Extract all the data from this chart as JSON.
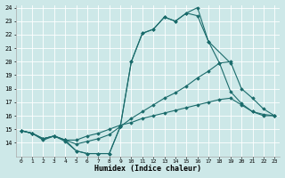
{
  "xlabel": "Humidex (Indice chaleur)",
  "bg_color": "#cde8e8",
  "line_color": "#1a6b6b",
  "xlim": [
    -0.5,
    23.5
  ],
  "ylim": [
    13,
    24.2
  ],
  "yticks": [
    14,
    15,
    16,
    17,
    18,
    19,
    20,
    21,
    22,
    23,
    24
  ],
  "xticks": [
    0,
    1,
    2,
    3,
    4,
    5,
    6,
    7,
    8,
    9,
    10,
    11,
    12,
    13,
    14,
    15,
    16,
    17,
    18,
    19,
    20,
    21,
    22,
    23
  ],
  "lines": [
    {
      "x": [
        0,
        1,
        2,
        3,
        4,
        5,
        6,
        7,
        8,
        9,
        10,
        11,
        12,
        13,
        14,
        15,
        16,
        17,
        19
      ],
      "y": [
        14.9,
        14.7,
        14.2,
        14.5,
        14.1,
        13.4,
        13.2,
        13.2,
        13.2,
        15.2,
        20.0,
        22.1,
        22.4,
        23.3,
        23.0,
        23.6,
        24.0,
        21.5,
        19.9
      ]
    },
    {
      "x": [
        0,
        1,
        2,
        3,
        4,
        5,
        6,
        7,
        8,
        9,
        10,
        11,
        12,
        13,
        14,
        15,
        16,
        17,
        18,
        19,
        20,
        21,
        22,
        23
      ],
      "y": [
        14.9,
        14.7,
        14.3,
        14.5,
        14.2,
        13.4,
        13.2,
        13.2,
        13.2,
        15.2,
        20.0,
        22.1,
        22.4,
        23.3,
        23.0,
        23.6,
        23.4,
        21.5,
        19.9,
        17.8,
        16.9,
        16.3,
        16.0,
        16.0
      ]
    },
    {
      "x": [
        0,
        1,
        2,
        3,
        4,
        5,
        6,
        7,
        8,
        9,
        10,
        11,
        12,
        13,
        14,
        15,
        16,
        17,
        18,
        19,
        20,
        21,
        22,
        23
      ],
      "y": [
        14.9,
        14.7,
        14.3,
        14.5,
        14.2,
        13.9,
        14.1,
        14.3,
        14.6,
        15.2,
        15.8,
        16.3,
        16.8,
        17.3,
        17.7,
        18.2,
        18.8,
        19.3,
        19.9,
        20.0,
        18.0,
        17.3,
        16.5,
        16.0
      ]
    },
    {
      "x": [
        0,
        1,
        2,
        3,
        4,
        5,
        6,
        7,
        8,
        9,
        10,
        11,
        12,
        13,
        14,
        15,
        16,
        17,
        18,
        19,
        20,
        21,
        22,
        23
      ],
      "y": [
        14.9,
        14.7,
        14.3,
        14.5,
        14.2,
        14.2,
        14.5,
        14.7,
        15.0,
        15.3,
        15.5,
        15.8,
        16.0,
        16.2,
        16.4,
        16.6,
        16.8,
        17.0,
        17.2,
        17.3,
        16.8,
        16.3,
        16.1,
        16.0
      ]
    }
  ]
}
